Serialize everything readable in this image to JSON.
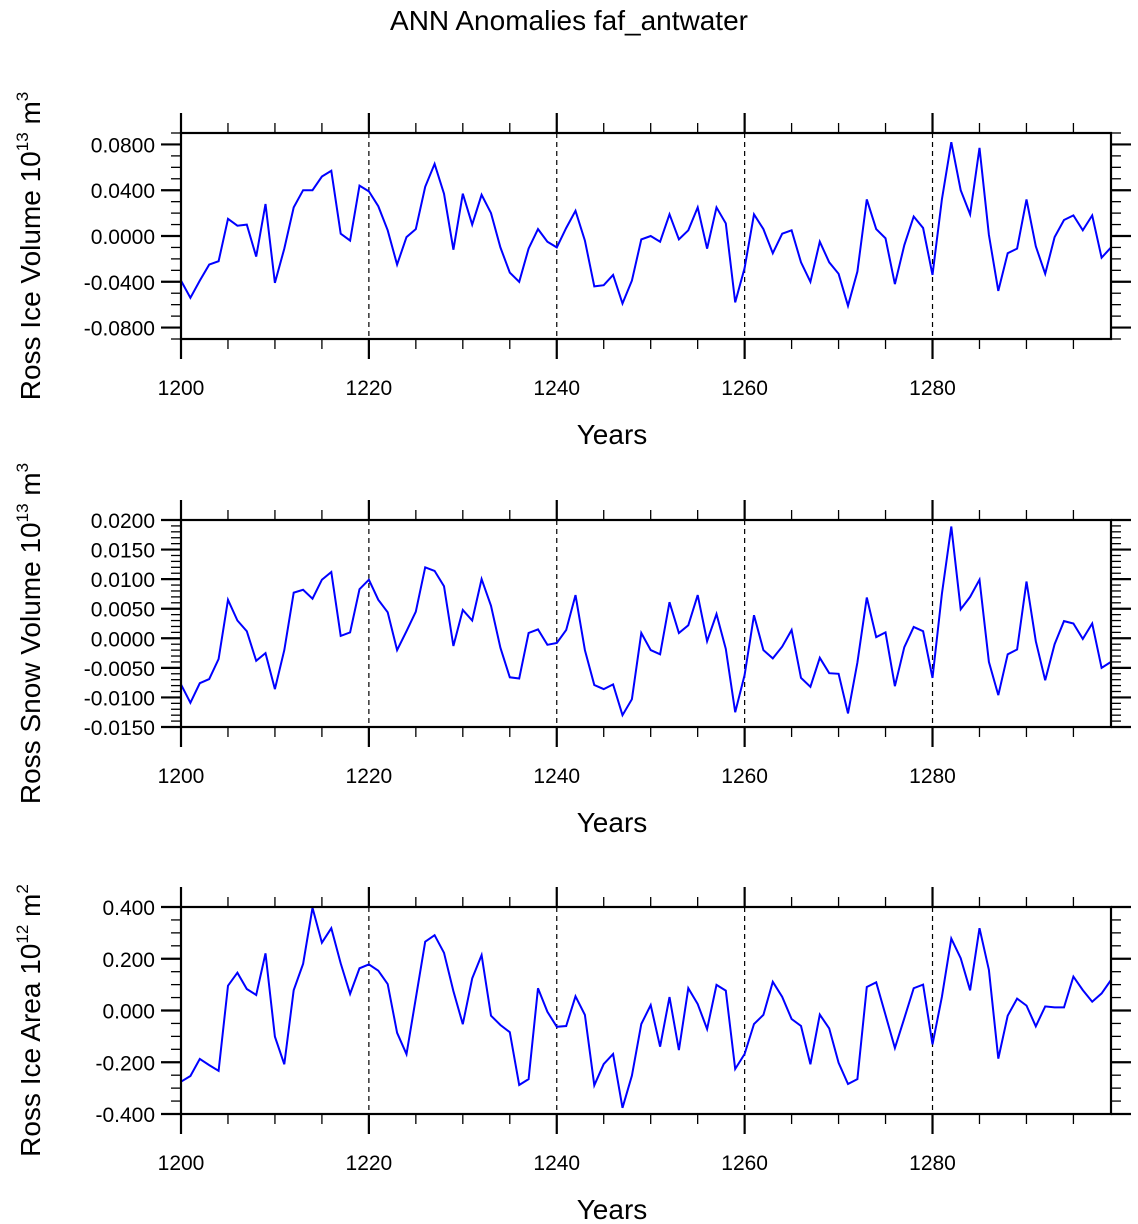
{
  "title": "ANN Anomalies faf_antwater",
  "chart_data": [
    {
      "type": "line",
      "title": "",
      "ylabel": {
        "prefix": "Ross Ice Volume 10",
        "exponent": "13",
        "unit": " m",
        "unit_exponent": "3"
      },
      "xlabel": "Years",
      "xlim": [
        1200,
        1299
      ],
      "ylim": [
        -0.09,
        0.09
      ],
      "xticks": [
        1200,
        1220,
        1240,
        1260,
        1280
      ],
      "xtick_labels": [
        "1200",
        "1220",
        "1240",
        "1260",
        "1280"
      ],
      "yticks": [
        -0.08,
        -0.04,
        0.0,
        0.04,
        0.08
      ],
      "ytick_labels": [
        "-0.0800",
        "-0.0400",
        "0.0000",
        "0.0400",
        "0.0800"
      ],
      "y_minor_step": 0.01,
      "x_minor_step": 5,
      "grid": "vertical dashed at major x ticks",
      "line_color": "#0000ff",
      "series": [
        {
          "name": "Ross Ice Volume",
          "x_start": 1200,
          "values": [
            -0.039,
            -0.054,
            -0.039,
            -0.025,
            -0.022,
            0.015,
            0.009,
            0.01,
            -0.018,
            0.028,
            -0.041,
            -0.011,
            0.025,
            0.04,
            0.04,
            0.052,
            0.057,
            0.002,
            -0.004,
            0.044,
            0.039,
            0.026,
            0.005,
            -0.025,
            -0.001,
            0.006,
            0.043,
            0.063,
            0.037,
            -0.012,
            0.037,
            0.01,
            0.036,
            0.02,
            -0.01,
            -0.032,
            -0.04,
            -0.011,
            0.006,
            -0.005,
            -0.01,
            0.007,
            0.022,
            -0.004,
            -0.044,
            -0.043,
            -0.034,
            -0.059,
            -0.039,
            -0.003,
            0.0,
            -0.005,
            0.019,
            -0.003,
            0.005,
            0.025,
            -0.011,
            0.025,
            0.011,
            -0.058,
            -0.028,
            0.019,
            0.006,
            -0.015,
            0.002,
            0.005,
            -0.023,
            -0.04,
            -0.005,
            -0.023,
            -0.033,
            -0.061,
            -0.031,
            0.032,
            0.006,
            -0.002,
            -0.042,
            -0.008,
            0.017,
            0.007,
            -0.034,
            0.032,
            0.082,
            0.04,
            0.019,
            0.077,
            0.001,
            -0.048,
            -0.015,
            -0.011,
            0.032,
            -0.009,
            -0.033,
            -0.001,
            0.014,
            0.018,
            0.005,
            0.018,
            -0.019,
            -0.01
          ]
        }
      ]
    },
    {
      "type": "line",
      "title": "",
      "ylabel": {
        "prefix": "Ross Snow Volume 10",
        "exponent": "13",
        "unit": " m",
        "unit_exponent": "3"
      },
      "xlabel": "Years",
      "xlim": [
        1200,
        1299
      ],
      "ylim": [
        -0.015,
        0.02
      ],
      "xticks": [
        1200,
        1220,
        1240,
        1260,
        1280
      ],
      "xtick_labels": [
        "1200",
        "1220",
        "1240",
        "1260",
        "1280"
      ],
      "yticks": [
        -0.015,
        -0.01,
        -0.005,
        0.0,
        0.005,
        0.01,
        0.015,
        0.02
      ],
      "ytick_labels": [
        "-0.0150",
        "-0.0100",
        "-0.0050",
        "0.0000",
        "0.0050",
        "0.0100",
        "0.0150",
        "0.0200"
      ],
      "y_minor_step": 0.001,
      "x_minor_step": 5,
      "grid": "vertical dashed at major x ticks",
      "line_color": "#0000ff",
      "series": [
        {
          "name": "Ross Snow Volume",
          "x_start": 1200,
          "values": [
            -0.0078,
            -0.0109,
            -0.0076,
            -0.0069,
            -0.0035,
            0.0065,
            0.003,
            0.0012,
            -0.0038,
            -0.0025,
            -0.0086,
            -0.002,
            0.0077,
            0.0082,
            0.0067,
            0.0099,
            0.0112,
            0.0004,
            0.001,
            0.0083,
            0.0099,
            0.0065,
            0.0044,
            -0.002,
            0.0012,
            0.0045,
            0.012,
            0.0114,
            0.0088,
            -0.0013,
            0.0048,
            0.003,
            0.01,
            0.0055,
            -0.0016,
            -0.0066,
            -0.0068,
            0.0009,
            0.0015,
            -0.0011,
            -0.0008,
            0.0014,
            0.0073,
            -0.002,
            -0.0079,
            -0.0086,
            -0.0078,
            -0.013,
            -0.0103,
            0.0009,
            -0.002,
            -0.0027,
            0.0061,
            0.0009,
            0.0022,
            0.0073,
            -0.0005,
            0.0041,
            -0.0018,
            -0.0125,
            -0.0062,
            0.0039,
            -0.002,
            -0.0034,
            -0.0014,
            0.0014,
            -0.0067,
            -0.0082,
            -0.0033,
            -0.0059,
            -0.006,
            -0.0127,
            -0.0041,
            0.0069,
            0.0002,
            0.001,
            -0.0081,
            -0.0015,
            0.0019,
            0.0012,
            -0.0067,
            0.0075,
            0.0189,
            0.0049,
            0.007,
            0.0099,
            -0.004,
            -0.0096,
            -0.0027,
            -0.0019,
            0.0096,
            -0.0005,
            -0.0071,
            -0.001,
            0.0029,
            0.0025,
            -0.0001,
            0.0025,
            -0.005,
            -0.004
          ]
        }
      ]
    },
    {
      "type": "line",
      "title": "",
      "ylabel": {
        "prefix": "Ross Ice Area 10",
        "exponent": "12",
        "unit": " m",
        "unit_exponent": "2"
      },
      "xlabel": "Years",
      "xlim": [
        1200,
        1299
      ],
      "ylim": [
        -0.4,
        0.4
      ],
      "xticks": [
        1200,
        1220,
        1240,
        1260,
        1280
      ],
      "xtick_labels": [
        "1200",
        "1220",
        "1240",
        "1260",
        "1280"
      ],
      "yticks": [
        -0.4,
        -0.2,
        0.0,
        0.2,
        0.4
      ],
      "ytick_labels": [
        "-0.400",
        "-0.200",
        "0.000",
        "0.200",
        "0.400"
      ],
      "y_minor_step": 0.05,
      "x_minor_step": 5,
      "grid": "vertical dashed at major x ticks",
      "line_color": "#0000ff",
      "series": [
        {
          "name": "Ross Ice Area",
          "x_start": 1200,
          "values": [
            -0.275,
            -0.253,
            -0.187,
            -0.211,
            -0.233,
            0.096,
            0.146,
            0.083,
            0.06,
            0.221,
            -0.101,
            -0.208,
            0.079,
            0.18,
            0.397,
            0.262,
            0.318,
            0.182,
            0.064,
            0.163,
            0.178,
            0.154,
            0.102,
            -0.086,
            -0.169,
            0.047,
            0.266,
            0.291,
            0.223,
            0.075,
            -0.053,
            0.124,
            0.214,
            -0.02,
            -0.056,
            -0.084,
            -0.288,
            -0.265,
            0.086,
            -0.005,
            -0.063,
            -0.06,
            0.055,
            -0.017,
            -0.289,
            -0.207,
            -0.168,
            -0.376,
            -0.252,
            -0.052,
            0.021,
            -0.14,
            0.052,
            -0.153,
            0.086,
            0.025,
            -0.072,
            0.099,
            0.077,
            -0.226,
            -0.168,
            -0.052,
            -0.017,
            0.111,
            0.053,
            -0.033,
            -0.06,
            -0.208,
            -0.016,
            -0.069,
            -0.202,
            -0.284,
            -0.265,
            0.091,
            0.109,
            -0.017,
            -0.145,
            -0.03,
            0.086,
            0.1,
            -0.131,
            0.053,
            0.278,
            0.202,
            0.078,
            0.318,
            0.157,
            -0.186,
            -0.02,
            0.046,
            0.019,
            -0.061,
            0.016,
            0.012,
            0.012,
            0.131,
            0.079,
            0.034,
            0.066,
            0.118
          ]
        }
      ]
    }
  ]
}
